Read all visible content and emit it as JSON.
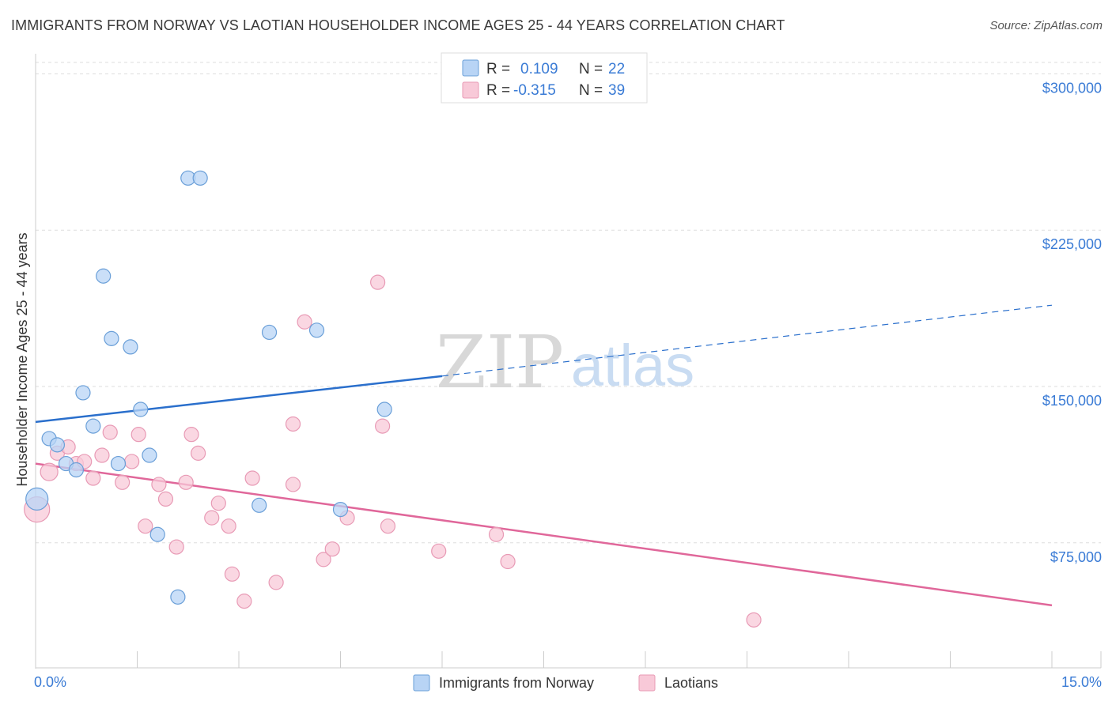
{
  "title": "IMMIGRANTS FROM NORWAY VS LAOTIAN HOUSEHOLDER INCOME AGES 25 - 44 YEARS CORRELATION CHART",
  "source": "Source: ZipAtlas.com",
  "watermark": {
    "zip": "ZIP",
    "atlas": "atlas"
  },
  "colors": {
    "norway_fill": "#b8d4f5",
    "norway_stroke": "#6a9fd8",
    "norway_line": "#2a6fcc",
    "laotian_fill": "#f8c9d8",
    "laotian_stroke": "#e89ab5",
    "laotian_line": "#e0679a",
    "accent_text": "#3a7bd5",
    "grid": "#dddddd"
  },
  "legend": {
    "rows": [
      {
        "r_label": "R =",
        "r_value": "0.109",
        "n_label": "N =",
        "n_value": "22"
      },
      {
        "r_label": "R =",
        "r_value": "-0.315",
        "n_label": "N =",
        "n_value": "39"
      }
    ]
  },
  "bottom_legend": [
    "Immigrants from Norway",
    "Laotians"
  ],
  "chart_data": {
    "type": "scatter",
    "title": "IMMIGRANTS FROM NORWAY VS LAOTIAN HOUSEHOLDER INCOME AGES 25 - 44 YEARS CORRELATION CHART",
    "xlabel": "",
    "ylabel": "Householder Income Ages 25 - 44 years",
    "xlim": [
      0,
      15
    ],
    "ylim": [
      15000,
      307000
    ],
    "x_tick_labels": [
      "0.0%",
      "15.0%"
    ],
    "y_ticks": [
      75000,
      150000,
      225000,
      300000
    ],
    "y_tick_labels": [
      "$75,000",
      "$150,000",
      "$225,000",
      "$300,000"
    ],
    "grid": true,
    "legend_position": "top-center",
    "series": [
      {
        "name": "Immigrants from Norway",
        "points": [
          [
            0.02,
            96000,
            14
          ],
          [
            0.2,
            125000,
            9
          ],
          [
            0.32,
            122000,
            9
          ],
          [
            0.45,
            113000,
            9
          ],
          [
            0.6,
            110000,
            9
          ],
          [
            0.7,
            147000,
            9
          ],
          [
            0.85,
            131000,
            9
          ],
          [
            1.0,
            203000,
            9
          ],
          [
            1.12,
            173000,
            9
          ],
          [
            1.22,
            113000,
            9
          ],
          [
            1.4,
            169000,
            9
          ],
          [
            1.55,
            139000,
            9
          ],
          [
            1.68,
            117000,
            9
          ],
          [
            1.8,
            79000,
            9
          ],
          [
            2.1,
            49000,
            9
          ],
          [
            2.25,
            250000,
            9
          ],
          [
            2.43,
            250000,
            9
          ],
          [
            3.3,
            93000,
            9
          ],
          [
            3.45,
            176000,
            9
          ],
          [
            4.15,
            177000,
            9
          ],
          [
            4.5,
            91000,
            9
          ],
          [
            5.15,
            139000,
            9
          ]
        ],
        "trend": {
          "x0": 0.0,
          "y0": 133000,
          "x1": 6.0,
          "y1": 155000,
          "dash_x1": 15.0,
          "dash_y1": 189000
        }
      },
      {
        "name": "Laotians",
        "points": [
          [
            0.02,
            91000,
            16
          ],
          [
            0.2,
            109000,
            11
          ],
          [
            0.32,
            118000,
            9
          ],
          [
            0.48,
            121000,
            9
          ],
          [
            0.6,
            113000,
            9
          ],
          [
            0.72,
            114000,
            9
          ],
          [
            0.85,
            106000,
            9
          ],
          [
            0.98,
            117000,
            9
          ],
          [
            1.1,
            128000,
            9
          ],
          [
            1.28,
            104000,
            9
          ],
          [
            1.42,
            114000,
            9
          ],
          [
            1.52,
            127000,
            9
          ],
          [
            1.62,
            83000,
            9
          ],
          [
            1.82,
            103000,
            9
          ],
          [
            1.92,
            96000,
            9
          ],
          [
            2.08,
            73000,
            9
          ],
          [
            2.22,
            104000,
            9
          ],
          [
            2.3,
            127000,
            9
          ],
          [
            2.4,
            118000,
            9
          ],
          [
            2.6,
            87000,
            9
          ],
          [
            2.7,
            94000,
            9
          ],
          [
            2.85,
            83000,
            9
          ],
          [
            2.9,
            60000,
            9
          ],
          [
            3.08,
            47000,
            9
          ],
          [
            3.2,
            106000,
            9
          ],
          [
            3.55,
            56000,
            9
          ],
          [
            3.8,
            103000,
            9
          ],
          [
            3.8,
            132000,
            9
          ],
          [
            3.97,
            181000,
            9
          ],
          [
            4.25,
            67000,
            9
          ],
          [
            4.38,
            72000,
            9
          ],
          [
            4.6,
            87000,
            9
          ],
          [
            5.05,
            200000,
            9
          ],
          [
            5.12,
            131000,
            9
          ],
          [
            5.2,
            83000,
            9
          ],
          [
            5.95,
            71000,
            9
          ],
          [
            6.8,
            79000,
            9
          ],
          [
            6.97,
            66000,
            9
          ],
          [
            10.6,
            38000,
            9
          ]
        ],
        "trend": {
          "x0": 0.0,
          "y0": 113000,
          "x1": 15.0,
          "y1": 45000
        }
      }
    ]
  }
}
